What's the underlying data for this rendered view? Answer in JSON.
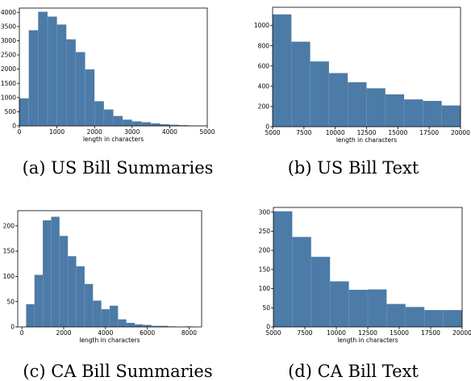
{
  "bar_color": "#4c7ba8",
  "divider_color": "#6f98c0",
  "chart_data": [
    {
      "type": "bar",
      "caption": "(a) US Bill Summaries",
      "xlabel": "length in characters",
      "ylabel": "",
      "xlim": [
        0,
        5000
      ],
      "ylim": [
        0,
        4150
      ],
      "xticks": [
        0,
        1000,
        2000,
        3000,
        4000,
        5000
      ],
      "xtick_labels": [
        "0",
        "1000",
        "2000",
        "3000",
        "4000",
        "5000"
      ],
      "yticks": [
        0,
        500,
        1000,
        1500,
        2000,
        2500,
        3000,
        3500,
        4000
      ],
      "ytick_labels": [
        "0",
        "500",
        "1000",
        "1500",
        "2000",
        "2500",
        "3000",
        "3500",
        "4000"
      ],
      "bin_edges": [
        0,
        250,
        500,
        750,
        1000,
        1250,
        1500,
        1750,
        2000,
        2250,
        2500,
        2750,
        3000,
        3250,
        3500,
        3750,
        4000,
        4250,
        4500,
        4750,
        5000
      ],
      "values": [
        970,
        3370,
        4020,
        3850,
        3570,
        3050,
        2600,
        1990,
        870,
        580,
        350,
        220,
        160,
        130,
        90,
        60,
        40,
        25,
        15,
        10
      ]
    },
    {
      "type": "bar",
      "caption": "(b) US Bill Text",
      "xlabel": "length in characters",
      "ylabel": "",
      "xlim": [
        5000,
        20000
      ],
      "ylim": [
        0,
        1180
      ],
      "xticks": [
        5000,
        7500,
        10000,
        12500,
        15000,
        17500,
        20000
      ],
      "xtick_labels": [
        "5000",
        "7500",
        "10000",
        "12500",
        "15000",
        "17500",
        "20000"
      ],
      "yticks": [
        0,
        200,
        400,
        600,
        800,
        1000
      ],
      "ytick_labels": [
        "0",
        "200",
        "400",
        "600",
        "800",
        "1000"
      ],
      "bin_edges": [
        5000,
        6500,
        8000,
        9500,
        11000,
        12500,
        14000,
        15500,
        17000,
        18500,
        20000
      ],
      "values": [
        1110,
        840,
        645,
        530,
        440,
        380,
        320,
        270,
        255,
        210
      ]
    },
    {
      "type": "bar",
      "caption": "(c) CA Bill Summaries",
      "xlabel": "length in characters",
      "ylabel": "",
      "xlim": [
        -200,
        8600
      ],
      "ylim": [
        0,
        230
      ],
      "xticks": [
        0,
        2000,
        4000,
        6000,
        8000
      ],
      "xtick_labels": [
        "0",
        "2000",
        "4000",
        "6000",
        "8000"
      ],
      "yticks": [
        0,
        50,
        100,
        150,
        200
      ],
      "ytick_labels": [
        "0",
        "50",
        "100",
        "150",
        "200"
      ],
      "bin_edges": [
        200,
        600,
        1000,
        1400,
        1800,
        2200,
        2600,
        3000,
        3400,
        3800,
        4200,
        4600,
        5000,
        5400,
        5800,
        6200,
        6600,
        7000,
        7400,
        7800,
        8200
      ],
      "values": [
        45,
        103,
        211,
        218,
        180,
        140,
        120,
        85,
        52,
        35,
        42,
        15,
        8,
        5,
        4,
        2,
        2,
        1,
        0,
        1
      ]
    },
    {
      "type": "bar",
      "caption": "(d) CA Bill Text",
      "xlabel": "length in characters",
      "ylabel": "",
      "xlim": [
        5000,
        20000
      ],
      "ylim": [
        0,
        312
      ],
      "xticks": [
        5000,
        7500,
        10000,
        12500,
        15000,
        17500,
        20000
      ],
      "xtick_labels": [
        "5000",
        "7500",
        "10000",
        "12500",
        "15000",
        "17500",
        "20000"
      ],
      "yticks": [
        0,
        50,
        100,
        150,
        200,
        250,
        300
      ],
      "ytick_labels": [
        "0",
        "50",
        "100",
        "150",
        "200",
        "250",
        "300"
      ],
      "bin_edges": [
        5000,
        6500,
        8000,
        9500,
        11000,
        12500,
        14000,
        15500,
        17000,
        18500,
        20000
      ],
      "values": [
        302,
        235,
        183,
        119,
        97,
        98,
        60,
        52,
        44,
        44
      ]
    }
  ]
}
